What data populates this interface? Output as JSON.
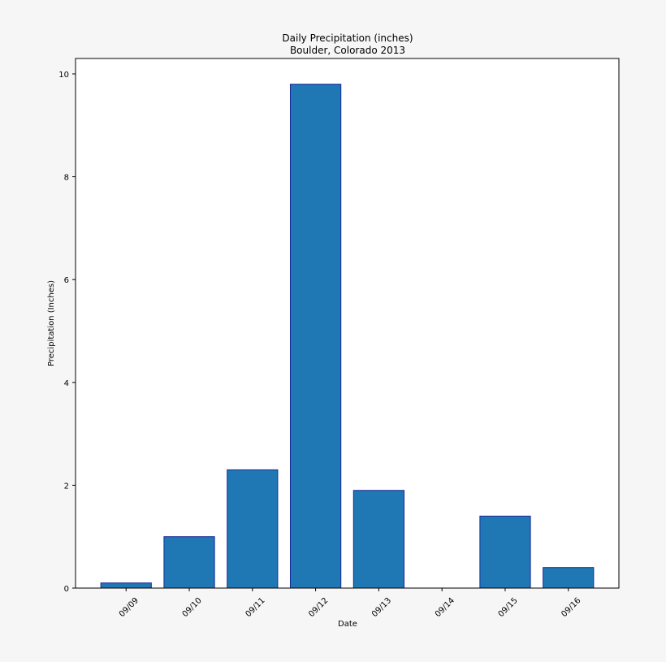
{
  "chart_data": {
    "type": "bar",
    "title": "Daily Precipitation (inches)",
    "subtitle": "Boulder, Colorado 2013",
    "xlabel": "Date",
    "ylabel": "Precipitation (Inches)",
    "categories": [
      "09/09",
      "09/10",
      "09/11",
      "09/12",
      "09/13",
      "09/14",
      "09/15",
      "09/16"
    ],
    "values": [
      0.1,
      1.0,
      2.3,
      9.8,
      1.9,
      0.0,
      1.4,
      0.4
    ],
    "ylim": [
      0,
      10.3
    ],
    "yticks": [
      0,
      2,
      4,
      6,
      8,
      10
    ],
    "grid": false,
    "legend": "none",
    "colors": {
      "bar_fill": "#1f77b4",
      "bar_edge": "#1a2a9a",
      "plot_bg": "#ffffff",
      "page_bg": "#f6f6f6"
    }
  }
}
